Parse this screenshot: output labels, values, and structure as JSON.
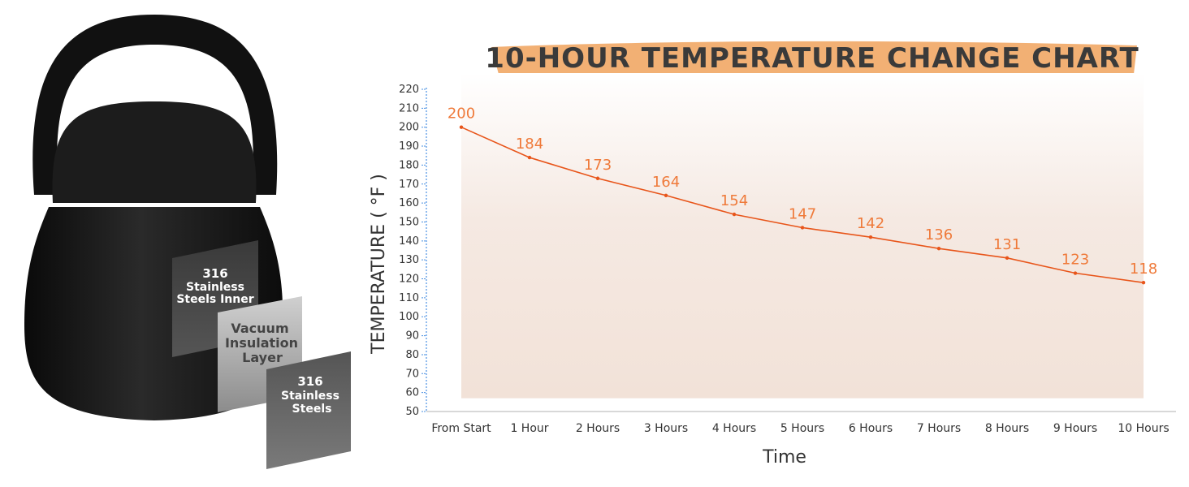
{
  "product": {
    "layers": [
      {
        "lines": [
          "316",
          "Stainless",
          "Steels Inner"
        ]
      },
      {
        "lines": [
          "Vacuum",
          "Insulation",
          "Layer"
        ]
      },
      {
        "lines": [
          "316",
          "Stainless",
          "Steels"
        ]
      }
    ]
  },
  "chart_data": {
    "type": "line",
    "title": "10-HOUR TEMPERATURE CHANGE CHART",
    "xlabel": "Time",
    "ylabel": "TEMPERATURE ( °F )",
    "categories": [
      "From Start",
      "1 Hour",
      "2 Hours",
      "3 Hours",
      "4 Hours",
      "5 Hours",
      "6 Hours",
      "7 Hours",
      "8 Hours",
      "9 Hours",
      "10 Hours"
    ],
    "values": [
      200,
      184,
      173,
      164,
      154,
      147,
      142,
      136,
      131,
      123,
      118
    ],
    "ylim": [
      50,
      220
    ],
    "yticks": [
      50,
      60,
      70,
      80,
      90,
      100,
      110,
      120,
      130,
      140,
      150,
      160,
      170,
      180,
      190,
      200,
      210,
      220
    ],
    "grid": false,
    "legend": "none",
    "line_color": "#e8551a",
    "label_color": "#ef7a3a",
    "fill_color": "#f2e2d8",
    "title_brush_color": "#f0a25c"
  }
}
